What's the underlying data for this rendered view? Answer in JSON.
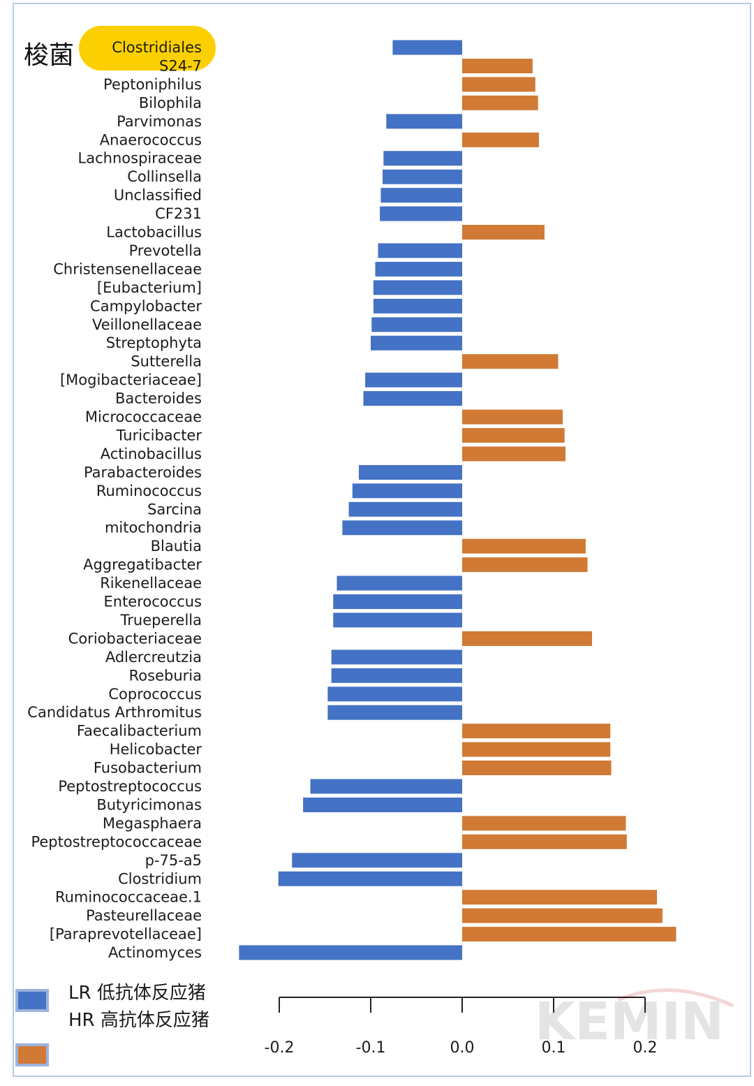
{
  "side_label": "梭菌",
  "highlight_label": "Clostridiales",
  "watermark": "KEMIN",
  "legend": [
    {
      "text": "LR 低抗体反应猪",
      "color": "#4472c4"
    },
    {
      "text": "HR 高抗体反应猪",
      "color": "#d07a35"
    }
  ],
  "colors": {
    "negative": "#4472c4",
    "positive": "#d07a35",
    "highlight": "#fcd000"
  },
  "chart_data": {
    "type": "bar",
    "orientation": "horizontal",
    "categories": [
      "Clostridiales",
      "S24-7",
      "Peptoniphilus",
      "Bilophila",
      "Parvimonas",
      "Anaerococcus",
      "Lachnospiraceae",
      "Collinsella",
      "Unclassified",
      "CF231",
      "Lactobacillus",
      "Prevotella",
      "Christensenellaceae",
      "[Eubacterium]",
      "Campylobacter",
      "Veillonellaceae",
      "Streptophyta",
      "Sutterella",
      "[Mogibacteriaceae]",
      "Bacteroides",
      "Micrococcaceae",
      "Turicibacter",
      "Actinobacillus",
      "Parabacteroides",
      "Ruminococcus",
      "Sarcina",
      "mitochondria",
      "Blautia",
      "Aggregatibacter",
      "Rikenellaceae",
      "Enterococcus",
      "Trueperella",
      "Coriobacteriaceae",
      "Adlercreutzia",
      "Roseburia",
      "Coprococcus",
      "Candidatus Arthromitus",
      "Faecalibacterium",
      "Helicobacter",
      "Fusobacterium",
      "Peptostreptococcus",
      "Butyricimonas",
      "Megasphaera",
      "Peptostreptococcaceae",
      "p-75-a5",
      "Clostridium",
      "Ruminococcaceae.1",
      "Pasteurellaceae",
      "[Paraprevotellaceae]",
      "Actinomyces"
    ],
    "values": [
      -0.076,
      0.077,
      0.08,
      0.083,
      -0.083,
      0.084,
      -0.086,
      -0.087,
      -0.089,
      -0.09,
      0.09,
      -0.092,
      -0.095,
      -0.097,
      -0.097,
      -0.099,
      -0.1,
      0.105,
      -0.106,
      -0.108,
      0.11,
      0.112,
      0.113,
      -0.113,
      -0.12,
      -0.124,
      -0.131,
      0.135,
      0.137,
      -0.137,
      -0.141,
      -0.141,
      0.142,
      -0.143,
      -0.143,
      -0.147,
      -0.147,
      0.162,
      0.162,
      0.163,
      -0.166,
      -0.174,
      0.179,
      0.18,
      -0.186,
      -0.201,
      0.213,
      0.219,
      0.234,
      -0.244
    ],
    "xlim": [
      -0.244,
      0.234
    ],
    "xticks": [
      -0.2,
      -0.1,
      0.0,
      0.1,
      0.2
    ],
    "xtick_labels": [
      "-0.2",
      "-0.1",
      "0.0",
      "0.1",
      "0.2"
    ],
    "grid": false,
    "legend_position": "bottom-left"
  }
}
